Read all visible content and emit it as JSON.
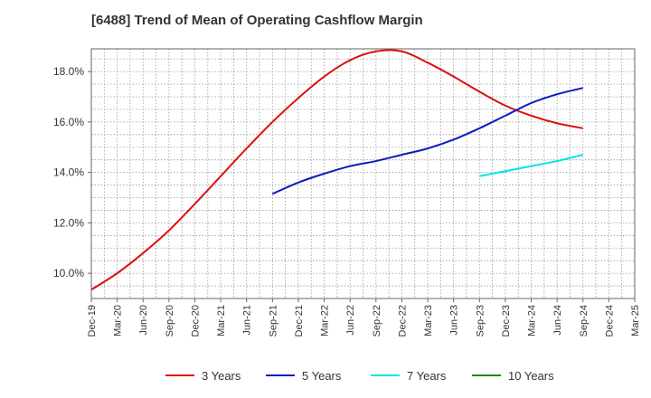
{
  "title": "[6488]  Trend of Mean of Operating Cashflow Margin",
  "chart_data": {
    "type": "line",
    "title": "[6488]  Trend of Mean of Operating Cashflow Margin",
    "xlabel": "",
    "ylabel": "",
    "x_ticks": [
      "Dec-19",
      "Mar-20",
      "Jun-20",
      "Sep-20",
      "Dec-20",
      "Mar-21",
      "Jun-21",
      "Sep-21",
      "Dec-21",
      "Mar-22",
      "Jun-22",
      "Sep-22",
      "Dec-22",
      "Mar-23",
      "Jun-23",
      "Sep-23",
      "Dec-23",
      "Mar-24",
      "Jun-24",
      "Sep-24",
      "Dec-24",
      "Mar-25"
    ],
    "y_ticks": [
      "10.0%",
      "12.0%",
      "14.0%",
      "16.0%",
      "18.0%"
    ],
    "ylim": [
      9.0,
      18.9
    ],
    "grid": true,
    "legend_position": "bottom",
    "series": [
      {
        "name": "3 Years",
        "color": "#dd1111",
        "x": [
          "Dec-19",
          "Mar-20",
          "Jun-20",
          "Sep-20",
          "Dec-20",
          "Mar-21",
          "Jun-21",
          "Sep-21",
          "Dec-21",
          "Mar-22",
          "Jun-22",
          "Sep-22",
          "Dec-22",
          "Mar-23",
          "Jun-23",
          "Sep-23",
          "Dec-23",
          "Mar-24",
          "Jun-24",
          "Sep-24"
        ],
        "values": [
          9.35,
          10.0,
          10.8,
          11.7,
          12.75,
          13.85,
          14.95,
          16.0,
          16.95,
          17.8,
          18.45,
          18.8,
          18.8,
          18.35,
          17.8,
          17.2,
          16.65,
          16.25,
          15.95,
          15.75
        ]
      },
      {
        "name": "5 Years",
        "color": "#0a1ebe",
        "x": [
          "Sep-21",
          "Dec-21",
          "Mar-22",
          "Jun-22",
          "Sep-22",
          "Dec-22",
          "Mar-23",
          "Jun-23",
          "Sep-23",
          "Dec-23",
          "Mar-24",
          "Jun-24",
          "Sep-24"
        ],
        "values": [
          13.15,
          13.6,
          13.95,
          14.25,
          14.45,
          14.7,
          14.95,
          15.3,
          15.75,
          16.25,
          16.75,
          17.1,
          17.35
        ]
      },
      {
        "name": "7 Years",
        "color": "#00e5e5",
        "x": [
          "Sep-23",
          "Dec-23",
          "Mar-24",
          "Jun-24",
          "Sep-24"
        ],
        "values": [
          13.85,
          14.05,
          14.25,
          14.45,
          14.7
        ]
      },
      {
        "name": "10 Years",
        "color": "#1a8a1a",
        "x": [],
        "values": []
      }
    ]
  }
}
